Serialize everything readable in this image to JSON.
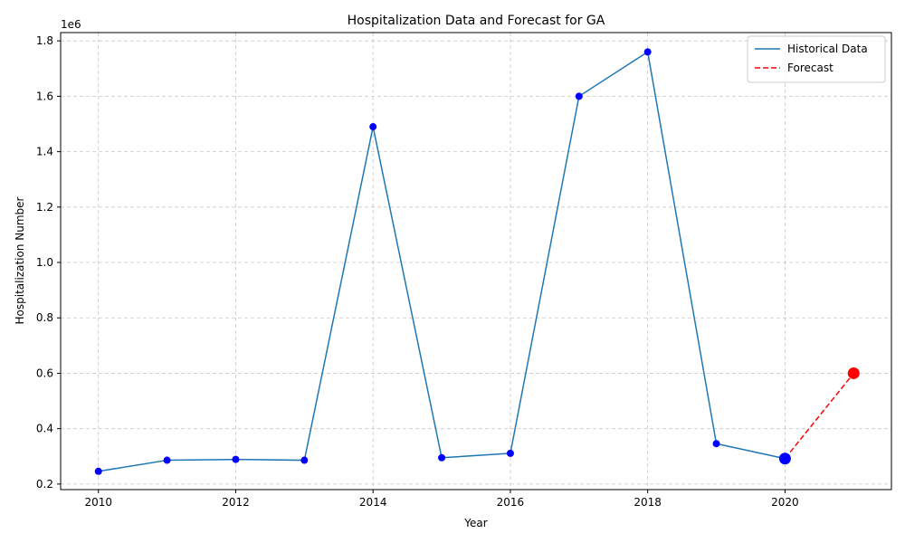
{
  "chart_data": {
    "type": "line",
    "title": "Hospitalization Data and Forecast for GA",
    "xlabel": "Year",
    "ylabel": "Hospitalization Number",
    "y_offset_label": "1e6",
    "xlim": [
      2009.45,
      2021.55
    ],
    "ylim": [
      180000,
      1830000
    ],
    "xticks": [
      2010,
      2012,
      2014,
      2016,
      2018,
      2020
    ],
    "yticks": [
      200000,
      400000,
      600000,
      800000,
      1000000,
      1200000,
      1400000,
      1600000,
      1800000
    ],
    "ytick_labels": [
      "0.2",
      "0.4",
      "0.6",
      "0.8",
      "1.0",
      "1.2",
      "1.4",
      "1.6",
      "1.8"
    ],
    "grid": true,
    "legend_position": "top-right",
    "series": [
      {
        "name": "Historical Data",
        "style": "solid",
        "color": "#1f77b4",
        "x": [
          2010,
          2011,
          2012,
          2013,
          2014,
          2015,
          2016,
          2017,
          2018,
          2019,
          2020
        ],
        "y": [
          246000,
          286000,
          289000,
          286000,
          1490000,
          295000,
          311000,
          1600000,
          1760000,
          346000,
          292000
        ]
      },
      {
        "name": "Forecast",
        "style": "dashed",
        "color": "#ff0000",
        "x": [
          2020,
          2021
        ],
        "y": [
          292000,
          600000
        ]
      }
    ],
    "point_color": "#0000ff",
    "highlight_points": [
      {
        "x": 2020,
        "y": 292000,
        "color": "#0000ff"
      },
      {
        "x": 2021,
        "y": 600000,
        "color": "#ff0000"
      }
    ]
  }
}
